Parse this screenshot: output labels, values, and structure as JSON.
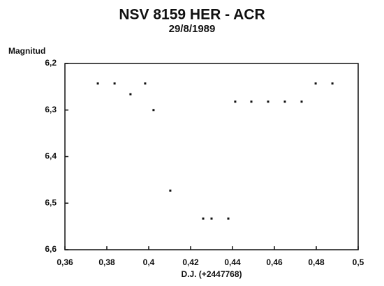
{
  "chart_data": {
    "type": "scatter",
    "title": "NSV 8159 HER - ACR",
    "subtitle": "29/8/1989",
    "y_label": "Magnitud",
    "x_label": "D.J. (+2447768)",
    "color": "#111111",
    "y_inverted": true,
    "x": [
      0.3757,
      0.3837,
      0.3913,
      0.3983,
      0.4023,
      0.4103,
      0.426,
      0.43,
      0.438,
      0.4413,
      0.449,
      0.457,
      0.465,
      0.473,
      0.4797,
      0.4877
    ],
    "values": [
      6.243,
      6.243,
      6.266,
      6.243,
      6.3,
      6.473,
      6.533,
      6.533,
      6.533,
      6.282,
      6.282,
      6.282,
      6.282,
      6.282,
      6.243,
      6.243
    ],
    "xlim": [
      0.36,
      0.5
    ],
    "ylim": [
      6.2,
      6.6
    ],
    "xticks": [
      {
        "value": 0.36,
        "label": "0,36"
      },
      {
        "value": 0.38,
        "label": "0,38"
      },
      {
        "value": 0.4,
        "label": "0,4"
      },
      {
        "value": 0.42,
        "label": "0,42"
      },
      {
        "value": 0.44,
        "label": "0,44"
      },
      {
        "value": 0.46,
        "label": "0,46"
      },
      {
        "value": 0.48,
        "label": "0,48"
      },
      {
        "value": 0.5,
        "label": "0,5"
      }
    ],
    "yticks": [
      {
        "value": 6.2,
        "label": "6,2"
      },
      {
        "value": 6.3,
        "label": "6,3"
      },
      {
        "value": 6.4,
        "label": "6,4"
      },
      {
        "value": 6.5,
        "label": "6,5"
      },
      {
        "value": 6.6,
        "label": "6,6"
      }
    ]
  }
}
